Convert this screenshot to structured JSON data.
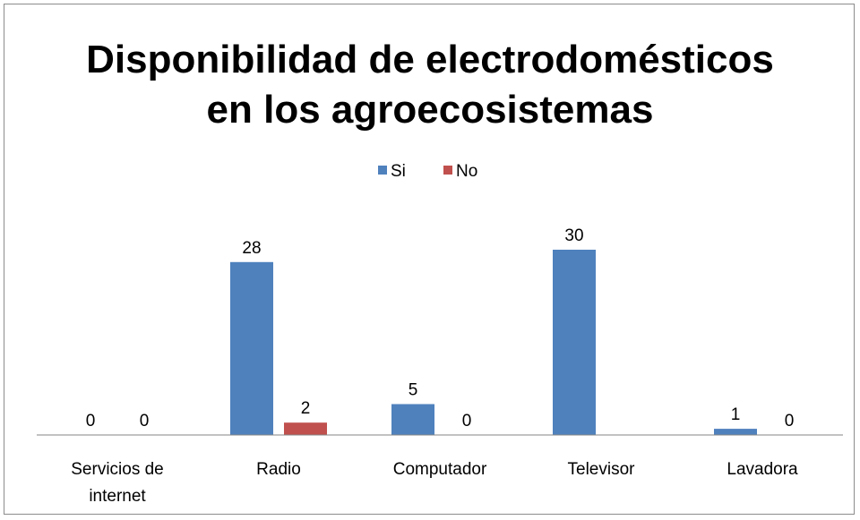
{
  "chart_data": {
    "type": "bar",
    "title_lines": [
      "Disponibilidad de electrodomésticos",
      "en los agroecosistemas"
    ],
    "categories": [
      [
        "Servicios de",
        "internet"
      ],
      [
        "Radio"
      ],
      [
        "Computador"
      ],
      [
        "Televisor"
      ],
      [
        "Lavadora"
      ]
    ],
    "series": [
      {
        "name": "Si",
        "color": "#4f81bd",
        "values": [
          0,
          28,
          5,
          30,
          1
        ],
        "labels": [
          "0",
          "28",
          "5",
          "30",
          "1"
        ]
      },
      {
        "name": "No",
        "color": "#c0504d",
        "values": [
          0,
          2,
          0,
          null,
          0
        ],
        "labels": [
          "0",
          "2",
          "0",
          "",
          "0"
        ]
      }
    ],
    "ylim": [
      0,
      32
    ],
    "grid": false,
    "legend_position": "top-center",
    "xlabel": "",
    "ylabel": ""
  }
}
